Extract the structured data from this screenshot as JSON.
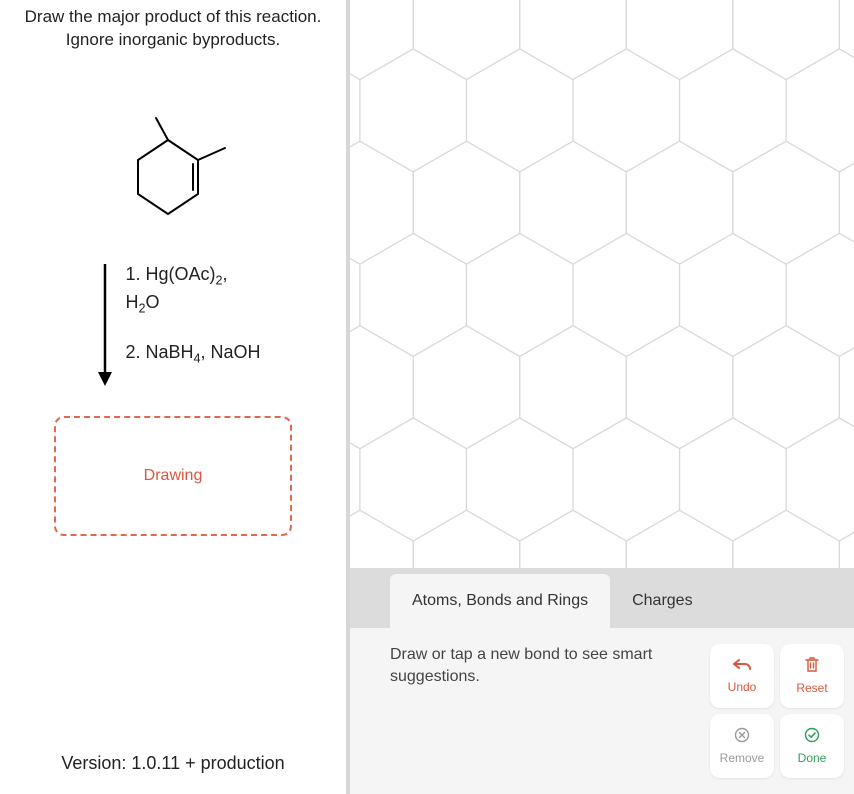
{
  "prompt": {
    "line1": "Draw the major product of this reaction.",
    "line2": "Ignore inorganic byproducts."
  },
  "reagents": {
    "step1_prefix": "1. Hg(OAc)",
    "step1_sub1": "2",
    "step1_suffix": ",",
    "step1_line2a": "H",
    "step1_line2_sub": "2",
    "step1_line2b": "O",
    "step2_prefix": "2. NaBH",
    "step2_sub": "4",
    "step2_suffix": ", NaOH"
  },
  "drawing_box_label": "Drawing",
  "version_text": "Version: 1.0.11 +  production",
  "tabs": {
    "atoms": "Atoms, Bonds and Rings",
    "charges": "Charges"
  },
  "hint_text": "Draw or tap a new bond to see smart suggestions.",
  "buttons": {
    "undo": "Undo",
    "reset": "Reset",
    "remove": "Remove",
    "done": "Done"
  },
  "colors": {
    "accent_orange": "#d9573e",
    "accent_green": "#2e9e5b",
    "hex_grid_stroke": "#d9d9d9",
    "divider": "#d7d7d7",
    "tab_bar_bg": "#dcdcdc",
    "footer_bg": "#f5f5f5"
  },
  "canvas": {
    "hex_radius": 62,
    "cols": 6,
    "rows": 7,
    "stroke_width": 1.2
  },
  "molecule": {
    "stroke": "#000000",
    "stroke_width": 2
  }
}
